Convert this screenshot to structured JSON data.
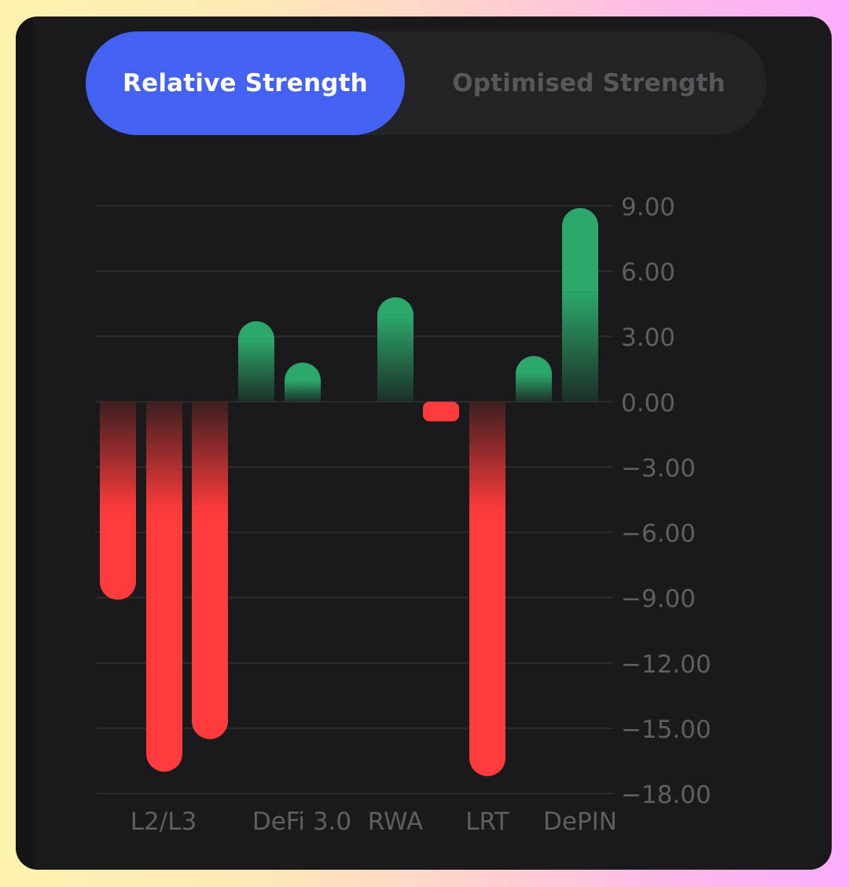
{
  "tabs": [
    {
      "label": "Relative Strength",
      "active": true
    },
    {
      "label": "Optimised Strength",
      "active": false
    }
  ],
  "colors": {
    "positive": "#2ba86a",
    "negative": "#ff3b3b",
    "active_tab": "#4361f2",
    "grid": "#2c2c30",
    "axis_text": "#5f5f63"
  },
  "chart_data": {
    "type": "bar",
    "categories": [
      "",
      "L2/L3",
      "",
      "",
      "DeFi 3.0",
      "RWA",
      "",
      "LRT",
      "",
      ""
    ],
    "x_labels_shown": [
      "L2/L3",
      "DeFi 3.0",
      "RWA",
      "LRT",
      "DePIN"
    ],
    "values": [
      -9.1,
      -17.0,
      -15.5,
      3.7,
      1.8,
      4.8,
      -0.9,
      -17.2,
      2.1,
      8.9
    ],
    "y_ticks": [
      "9.00",
      "6.00",
      "3.00",
      "0.00",
      "-3.00",
      "-6.00",
      "-9.00",
      "-12.00",
      "-15.00",
      "-18.00"
    ],
    "ylim": [
      -18,
      9
    ],
    "title": "",
    "xlabel": "",
    "ylabel": "",
    "grid": true,
    "axis_position": "right"
  }
}
